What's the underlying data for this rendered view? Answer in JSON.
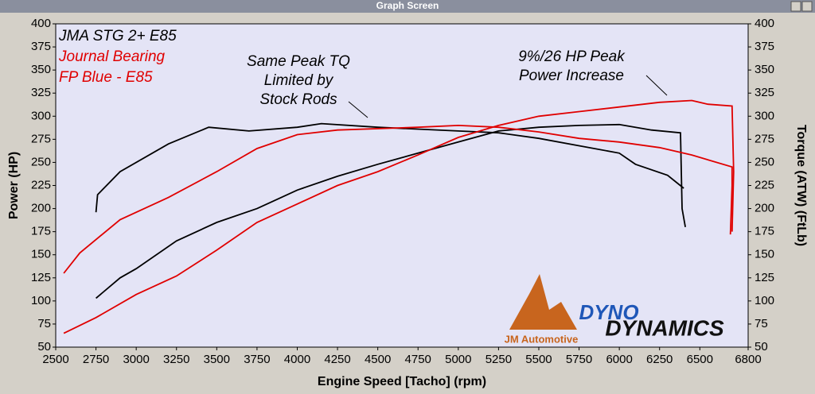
{
  "window_title": "Graph Screen",
  "chart_data": {
    "type": "line",
    "xlabel": "Engine Speed [Tacho] (rpm)",
    "ylabel": "Power (HP)",
    "y2label": "Torque (ATW) (FtLb)",
    "xlim": [
      2500,
      6800
    ],
    "xticks": [
      2500,
      2750,
      3000,
      3250,
      3500,
      3750,
      4000,
      4250,
      4500,
      4750,
      5000,
      5250,
      5500,
      5750,
      6000,
      6250,
      6500,
      6800
    ],
    "ylim": [
      50,
      400
    ],
    "yticks": [
      50,
      75,
      100,
      125,
      150,
      175,
      200,
      225,
      250,
      275,
      300,
      325,
      350,
      375,
      400
    ],
    "y2lim": [
      50,
      400
    ],
    "y2ticks": [
      50,
      75,
      100,
      125,
      150,
      175,
      200,
      225,
      250,
      275,
      300,
      325,
      350,
      375,
      400
    ],
    "legend_lines": [
      {
        "text": "JMA STG 2+ E85",
        "color": "#000000"
      },
      {
        "text": "Journal Bearing",
        "color": "#e00000"
      },
      {
        "text": "FP Blue - E85",
        "color": "#e00000"
      }
    ],
    "annotations": [
      [
        "Same Peak TQ",
        "Limited by",
        "Stock Rods"
      ],
      [
        "9%/26 HP Peak",
        "Power Increase"
      ]
    ],
    "logo_texts": [
      "JM Automotive",
      "DYNO",
      "DYNAMICS"
    ],
    "series": [
      {
        "color": "#000000",
        "axis": "y",
        "x": [
          2750,
          2900,
          3000,
          3250,
          3500,
          3750,
          4000,
          4250,
          4500,
          4750,
          5000,
          5250,
          5500,
          5750,
          6000,
          6200,
          6380,
          6390,
          6410
        ],
        "values": [
          103,
          125,
          135,
          165,
          185,
          200,
          220,
          235,
          248,
          260,
          272,
          284,
          288,
          290,
          291,
          285,
          282,
          200,
          180
        ]
      },
      {
        "color": "#000000",
        "axis": "y2",
        "x": [
          2750,
          2760,
          2900,
          3200,
          3450,
          3700,
          4000,
          4150,
          4500,
          5000,
          5250,
          5500,
          5750,
          6000,
          6100,
          6300,
          6400
        ],
        "values": [
          196,
          215,
          240,
          270,
          288,
          284,
          288,
          292,
          288,
          284,
          282,
          276,
          268,
          260,
          248,
          236,
          222
        ]
      },
      {
        "color": "#e00000",
        "axis": "y",
        "x": [
          2550,
          2750,
          3000,
          3250,
          3500,
          3750,
          4000,
          4250,
          4500,
          4750,
          5000,
          5250,
          5500,
          5750,
          6000,
          6250,
          6450,
          6550,
          6700,
          6710,
          6700
        ],
        "values": [
          65,
          82,
          107,
          127,
          155,
          185,
          205,
          225,
          240,
          258,
          277,
          290,
          300,
          305,
          310,
          315,
          317,
          313,
          311,
          240,
          175
        ]
      },
      {
        "color": "#e00000",
        "axis": "y2",
        "x": [
          2550,
          2650,
          2900,
          3200,
          3500,
          3750,
          4000,
          4250,
          4750,
          5000,
          5250,
          5500,
          5750,
          6000,
          6250,
          6450,
          6700,
          6700,
          6690
        ],
        "values": [
          130,
          152,
          188,
          212,
          240,
          265,
          280,
          285,
          288,
          290,
          288,
          283,
          276,
          272,
          266,
          258,
          245,
          225,
          172
        ]
      }
    ]
  }
}
